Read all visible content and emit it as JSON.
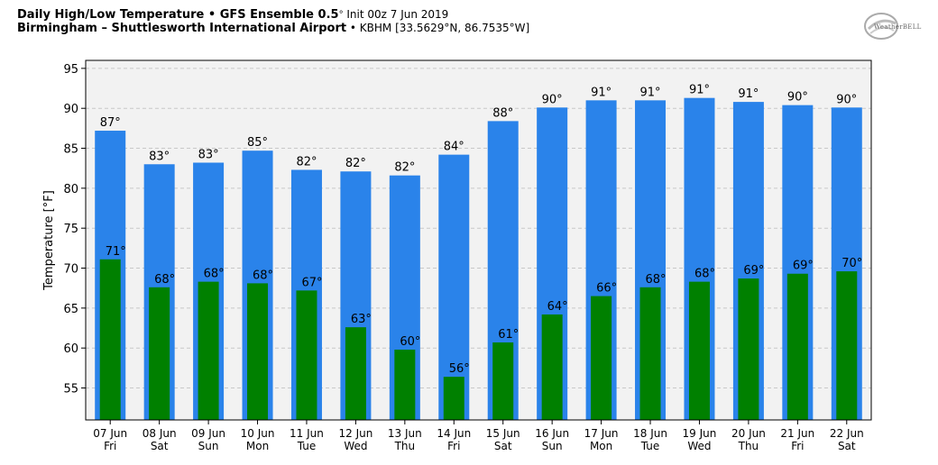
{
  "header": {
    "title_bold": "Daily High/Low Temperature • GFS Ensemble 0.5",
    "title_deg": "°",
    "title_norm": " Init 00z 7 Jun 2019",
    "subtitle_bold": "Birmingham – Shuttlesworth International Airport",
    "subtitle_norm": " • KBHM [33.5629°N, 86.7535°W]"
  },
  "logo": {
    "text": "WeatherBELL",
    "icon": "weatherbell-logo-icon"
  },
  "colors": {
    "high": "#2a83ea",
    "low": "#008000",
    "plot_bg": "#f2f2f2",
    "grid": "#c8c8c8"
  },
  "chart_data": {
    "type": "bar",
    "title": "Daily High/Low Temperature • GFS Ensemble 0.5° Init 00z 7 Jun 2019",
    "ylabel": "Temperature [°F]",
    "xlabel": "",
    "ylim": [
      51,
      96
    ],
    "yticks": [
      55,
      60,
      65,
      70,
      75,
      80,
      85,
      90,
      95
    ],
    "grid": true,
    "categories": [
      "07 Jun",
      "08 Jun",
      "09 Jun",
      "10 Jun",
      "11 Jun",
      "12 Jun",
      "13 Jun",
      "14 Jun",
      "15 Jun",
      "16 Jun",
      "17 Jun",
      "18 Jun",
      "19 Jun",
      "20 Jun",
      "21 Jun",
      "22 Jun"
    ],
    "weekdays": [
      "Fri",
      "Sat",
      "Sun",
      "Mon",
      "Tue",
      "Wed",
      "Thu",
      "Fri",
      "Sat",
      "Sun",
      "Mon",
      "Tue",
      "Wed",
      "Thu",
      "Fri",
      "Sat"
    ],
    "series": [
      {
        "key": "high",
        "values": [
          87.2,
          83.0,
          83.2,
          84.7,
          82.3,
          82.1,
          81.6,
          84.2,
          88.4,
          90.1,
          91.0,
          91.0,
          91.3,
          90.8,
          90.4,
          90.1
        ],
        "labels": [
          "87°",
          "83°",
          "83°",
          "85°",
          "82°",
          "82°",
          "82°",
          "84°",
          "88°",
          "90°",
          "91°",
          "91°",
          "91°",
          "91°",
          "90°",
          "90°"
        ]
      },
      {
        "key": "low",
        "values": [
          71.1,
          67.6,
          68.3,
          68.1,
          67.2,
          62.6,
          59.8,
          56.4,
          60.7,
          64.2,
          66.5,
          67.6,
          68.3,
          68.7,
          69.3,
          69.6
        ],
        "labels": [
          "71°",
          "68°",
          "68°",
          "68°",
          "67°",
          "63°",
          "60°",
          "56°",
          "61°",
          "64°",
          "66°",
          "68°",
          "68°",
          "69°",
          "69°",
          "70°"
        ]
      }
    ]
  }
}
